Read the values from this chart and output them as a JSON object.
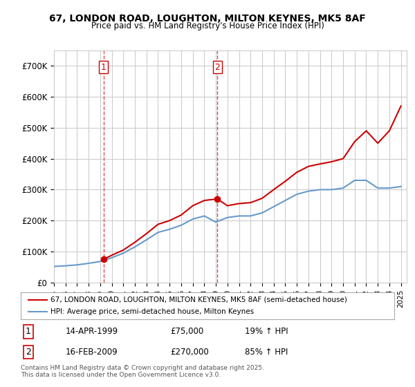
{
  "title": "67, LONDON ROAD, LOUGHTON, MILTON KEYNES, MK5 8AF",
  "subtitle": "Price paid vs. HM Land Registry's House Price Index (HPI)",
  "legend_line1": "67, LONDON ROAD, LOUGHTON, MILTON KEYNES, MK5 8AF (semi-detached house)",
  "legend_line2": "HPI: Average price, semi-detached house, Milton Keynes",
  "footnote": "Contains HM Land Registry data © Crown copyright and database right 2025.\nThis data is licensed under the Open Government Licence v3.0.",
  "transaction1_label": "1",
  "transaction1_date": "14-APR-1999",
  "transaction1_price": "£75,000",
  "transaction1_hpi": "19% ↑ HPI",
  "transaction2_label": "2",
  "transaction2_date": "16-FEB-2009",
  "transaction2_price": "£270,000",
  "transaction2_hpi": "85% ↑ HPI",
  "red_color": "#cc0000",
  "blue_color": "#6699cc",
  "vline_color": "#cc0000",
  "grid_color": "#cccccc",
  "background_color": "#ffffff",
  "ylim": [
    0,
    750000
  ],
  "xlim_start": 1995.0,
  "xlim_end": 2025.5,
  "transaction1_x": 1999.28,
  "transaction2_x": 2009.12,
  "hpi_years": [
    1995,
    1996,
    1997,
    1998,
    1999,
    2000,
    2001,
    2002,
    2003,
    2004,
    2005,
    2006,
    2007,
    2008,
    2009,
    2010,
    2011,
    2012,
    2013,
    2014,
    2015,
    2016,
    2017,
    2018,
    2019,
    2020,
    2021,
    2022,
    2023,
    2024,
    2025
  ],
  "hpi_values": [
    52000,
    54000,
    57000,
    62000,
    68000,
    80000,
    95000,
    115000,
    138000,
    162000,
    172000,
    185000,
    205000,
    215000,
    195000,
    210000,
    215000,
    215000,
    225000,
    245000,
    265000,
    285000,
    295000,
    300000,
    300000,
    305000,
    330000,
    330000,
    305000,
    305000,
    310000
  ],
  "prop_years": [
    1999.28,
    2000,
    2001,
    2002,
    2003,
    2004,
    2005,
    2006,
    2007,
    2008,
    2009.12,
    2010,
    2011,
    2012,
    2013,
    2014,
    2015,
    2016,
    2017,
    2018,
    2019,
    2020,
    2021,
    2022,
    2023,
    2024,
    2025
  ],
  "prop_values": [
    75000,
    88000,
    105000,
    130000,
    158000,
    188000,
    200000,
    218000,
    248000,
    265000,
    270000,
    248000,
    255000,
    258000,
    272000,
    300000,
    327000,
    356000,
    375000,
    383000,
    390000,
    400000,
    455000,
    490000,
    450000,
    490000,
    570000
  ],
  "transaction1_dot_y": 75000,
  "transaction2_dot_y": 270000
}
